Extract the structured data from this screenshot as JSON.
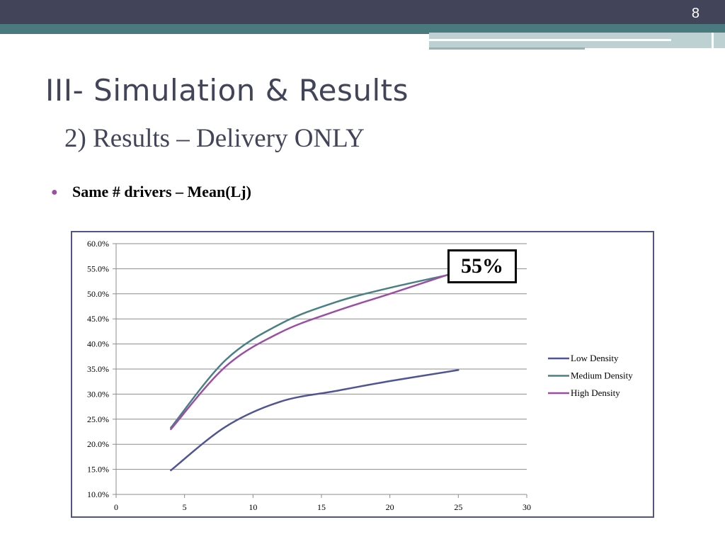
{
  "slide": {
    "page_number": "8",
    "title": "III- Simulation & Results",
    "subtitle": "2) Results – Delivery ONLY",
    "bullet": "Same # drivers – Mean(Lj)",
    "callout": "55%"
  },
  "colors": {
    "header_bar": "#424459",
    "teal_stripe": "#4a7a7e",
    "title_text": "#424459",
    "bullet_dot": "#9c4ea3",
    "chart_border": "#4f5588"
  },
  "chart_data": {
    "type": "line",
    "title": "",
    "xlabel": "",
    "ylabel": "",
    "xlim": [
      0,
      30
    ],
    "ylim": [
      0.1,
      0.6
    ],
    "x_ticks": [
      "0",
      "5",
      "10",
      "15",
      "20",
      "25",
      "30"
    ],
    "y_ticks": [
      "10.0%",
      "15.0%",
      "20.0%",
      "25.0%",
      "30.0%",
      "35.0%",
      "40.0%",
      "45.0%",
      "50.0%",
      "55.0%",
      "60.0%"
    ],
    "grid": "horizontal",
    "legend_position": "right",
    "series": [
      {
        "name": "Low Density",
        "color": "#4f5594",
        "x": [
          4,
          8,
          12,
          16,
          20,
          25
        ],
        "y": [
          0.148,
          0.235,
          0.285,
          0.306,
          0.326,
          0.348
        ]
      },
      {
        "name": "Medium Density",
        "color": "#4a8083",
        "x": [
          4,
          8,
          12,
          16,
          20,
          25
        ],
        "y": [
          0.233,
          0.368,
          0.44,
          0.483,
          0.512,
          0.542
        ]
      },
      {
        "name": "High Density",
        "color": "#9c4ea3",
        "x": [
          4,
          8,
          12,
          16,
          20,
          25
        ],
        "y": [
          0.23,
          0.355,
          0.423,
          0.465,
          0.5,
          0.545
        ]
      }
    ]
  }
}
